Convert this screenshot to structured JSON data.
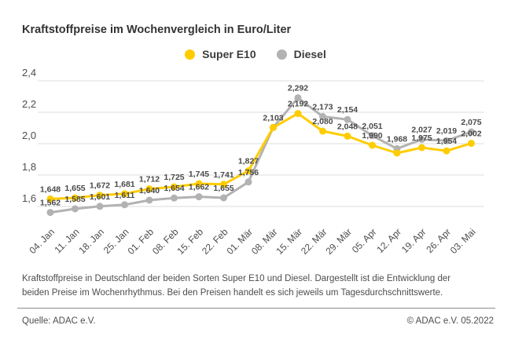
{
  "header": {
    "title": "Kraftstoffpreise im Wochenvergleich in Euro/Liter"
  },
  "chart_data": {
    "type": "line",
    "title": "Kraftstoffpreise im Wochenvergleich in Euro/Liter",
    "unit": "Euro/Liter",
    "grid": true,
    "legend_position": "top-center",
    "categories": [
      "04. Jan",
      "11. Jan",
      "18. Jan",
      "25. Jan",
      "01. Feb",
      "08. Feb",
      "15. Feb",
      "22. Feb",
      "01. Mär",
      "08. Mär",
      "15. Mär",
      "22. Mär",
      "29. Mär",
      "05. Apr",
      "12. Apr",
      "19. Apr",
      "26. Apr",
      "03. Mai"
    ],
    "series": [
      {
        "name": "Diesel",
        "color": "#B2B2B2",
        "values": [
          1.562,
          1.585,
          1.601,
          1.611,
          1.64,
          1.654,
          1.662,
          1.655,
          1.756,
          2.103,
          2.292,
          2.173,
          2.154,
          2.051,
          1.968,
          2.027,
          2.019,
          2.075
        ],
        "labels": [
          "1,562",
          "1,585",
          "1,601",
          "1,611",
          "1,640",
          "1,654",
          "1,662",
          "1,655",
          "1,756",
          "",
          "2,292",
          "2,173",
          "2,154",
          "2,051",
          "1,968",
          "2,027",
          "2,019",
          "2,075"
        ]
      },
      {
        "name": "Super E10",
        "color": "#FFCC00",
        "values": [
          1.648,
          1.655,
          1.672,
          1.681,
          1.712,
          1.725,
          1.745,
          1.741,
          1.827,
          2.103,
          2.192,
          2.08,
          2.048,
          1.99,
          1.94,
          1.975,
          1.954,
          2.002
        ],
        "labels": [
          "1,648",
          "1,655",
          "1,672",
          "1,681",
          "1,712",
          "1,725",
          "1,745",
          "1,741",
          "1,827",
          "2,103",
          "2,192",
          "2,080",
          "2,048",
          "1,990",
          "",
          "1,975",
          "1,954",
          "2,002"
        ]
      }
    ],
    "y_ticks": {
      "labels": [
        "2,4",
        "2,2",
        "2,0",
        "1,8",
        "1,6"
      ],
      "values": [
        2.4,
        2.2,
        2.0,
        1.8,
        1.6
      ]
    },
    "ylim": [
      1.5,
      2.4
    ]
  },
  "legend_order": [
    1,
    0
  ],
  "footer": {
    "description": "Kraftstoffpreise in Deutschland der beiden Sorten Super E10 und Diesel. Dargestellt ist die Entwicklung der beiden Preise im Wochenrhythmus. Bei den Preisen handelt es sich jeweils um Tagesdurchschnittswerte.",
    "source": "Quelle: ADAC e.V.",
    "copyright": "© ADAC e.V. 05.2022"
  },
  "colors": {
    "super_e10": "#FFCC00",
    "diesel": "#B2B2B2",
    "grid": "#DCDCDC",
    "axis_text": "#4D4D4D",
    "label_text": "#4A4A4A",
    "title_text": "#333333",
    "divider": "#8C8C8C"
  }
}
